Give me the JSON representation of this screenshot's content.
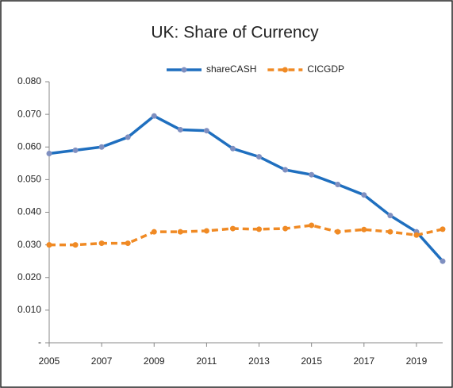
{
  "chart_data": {
    "type": "line",
    "title": "UK: Share of Currency",
    "x": [
      2005,
      2006,
      2007,
      2008,
      2009,
      2010,
      2011,
      2012,
      2013,
      2014,
      2015,
      2016,
      2017,
      2018,
      2019,
      2020
    ],
    "series": [
      {
        "name": "shareCASH",
        "color": "#1f6fbf",
        "dash": false,
        "values": [
          0.058,
          0.059,
          0.06,
          0.063,
          0.0695,
          0.0653,
          0.065,
          0.0595,
          0.057,
          0.053,
          0.0515,
          0.0485,
          0.0453,
          0.039,
          0.034,
          0.025
        ]
      },
      {
        "name": "CICGDP",
        "color": "#f08a24",
        "dash": true,
        "values": [
          0.03,
          0.03,
          0.0305,
          0.0305,
          0.034,
          0.034,
          0.0343,
          0.035,
          0.0348,
          0.035,
          0.036,
          0.034,
          0.0347,
          0.034,
          0.033,
          0.0348
        ]
      }
    ],
    "xlim": [
      2005,
      2020
    ],
    "xticks": [
      2005,
      2007,
      2009,
      2011,
      2013,
      2015,
      2017,
      2019
    ],
    "ylim": [
      0,
      0.08
    ],
    "yticks": [
      {
        "value": 0,
        "label": "-"
      },
      {
        "value": 0.01,
        "label": "0.010"
      },
      {
        "value": 0.02,
        "label": "0.020"
      },
      {
        "value": 0.03,
        "label": "0.030"
      },
      {
        "value": 0.04,
        "label": "0.040"
      },
      {
        "value": 0.05,
        "label": "0.050"
      },
      {
        "value": 0.06,
        "label": "0.060"
      },
      {
        "value": 0.07,
        "label": "0.070"
      },
      {
        "value": 0.08,
        "label": "0.080"
      }
    ],
    "grid": false,
    "legend": "top"
  }
}
